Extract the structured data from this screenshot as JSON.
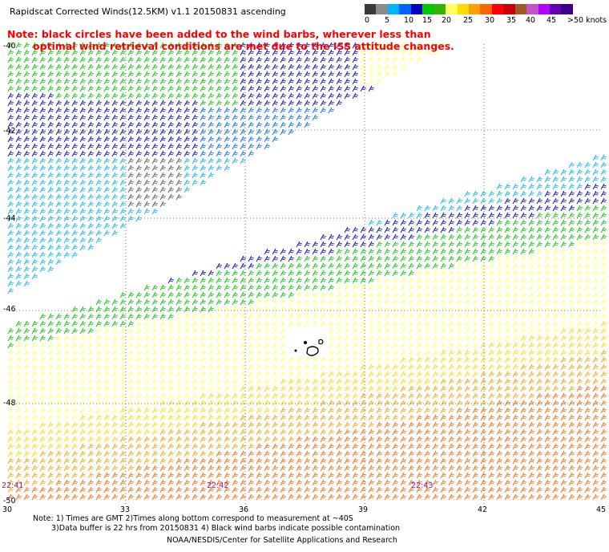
{
  "title": "Rapidscat Corrected Winds(12.5KM) v1.1 20150831 ascending",
  "note_red": {
    "line1": "Note: black circles have been added to the wind barbs, wherever less than",
    "line2": "optimal wind retrieval conditions are met due to the ISS attitude changes."
  },
  "colorbar": {
    "colors": [
      "#3a3a3a",
      "#8c8c8c",
      "#00b4ff",
      "#0064ff",
      "#0000c8",
      "#00c800",
      "#32b400",
      "#ffff64",
      "#ffdc00",
      "#ffa000",
      "#ff6400",
      "#ff0000",
      "#c80000",
      "#a05a28",
      "#c850c8",
      "#b400ff",
      "#6400b4",
      "#3c008c"
    ],
    "labels": [
      "0",
      "5",
      "10",
      "15",
      "20",
      "25",
      "30",
      "35",
      "40",
      "45",
      ">50 knots"
    ]
  },
  "map": {
    "lat_labels": [
      "-40",
      "-42",
      "-44",
      "-46",
      "-48",
      "-50"
    ],
    "lon_labels": [
      "30",
      "33",
      "36",
      "39",
      "42",
      "45"
    ],
    "time_labels": [
      "22:41",
      "22:42",
      "22:43"
    ],
    "grid": true,
    "grid_style": "dotted"
  },
  "footer": {
    "line1": "Note: 1) Times are GMT 2)Times along bottom correspond to measurement at ~40S",
    "line2": "3)Data buffer is 22 hrs from 20150831 4) Black wind barbs indicate possible contamination",
    "line3": "NOAA/NESDIS/Center for Satellite Applications and Research"
  }
}
